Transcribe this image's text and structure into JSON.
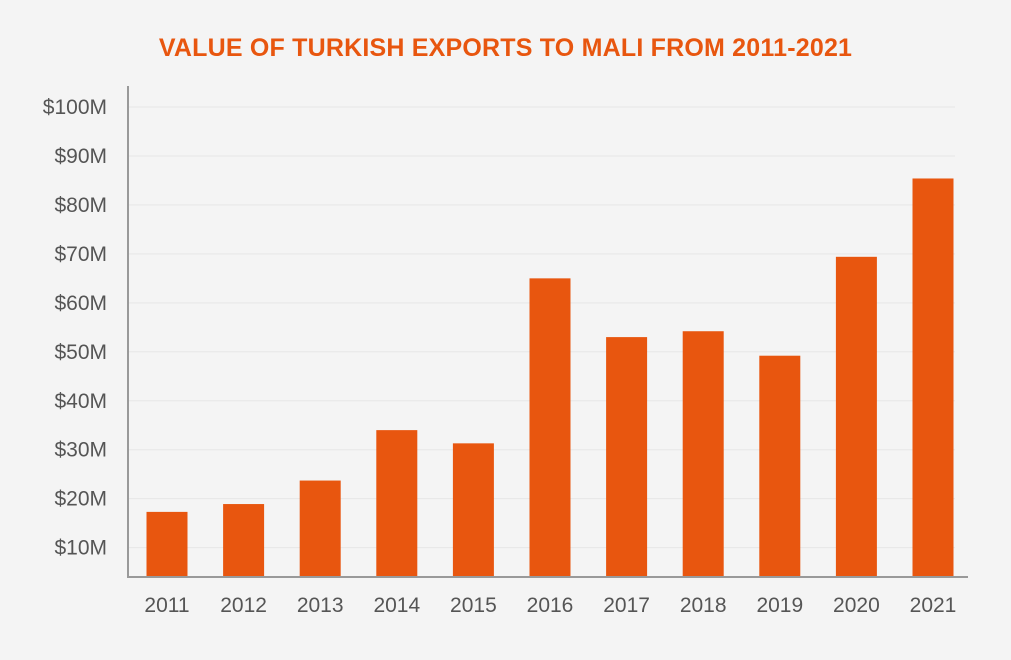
{
  "chart_data": {
    "type": "bar",
    "title": "VALUE OF TURKISH EXPORTS TO MALI FROM 2011-2021",
    "xlabel": "",
    "ylabel": "",
    "categories": [
      "2011",
      "2012",
      "2013",
      "2014",
      "2015",
      "2016",
      "2017",
      "2018",
      "2019",
      "2020",
      "2021"
    ],
    "values": [
      17.3,
      18.9,
      23.7,
      34.0,
      31.3,
      65.0,
      53.0,
      54.2,
      49.2,
      69.4,
      85.4
    ],
    "unit": "$M",
    "ylim": [
      4,
      100
    ],
    "yticks": [
      10,
      20,
      30,
      40,
      50,
      60,
      70,
      80,
      90,
      100
    ],
    "ytick_labels": [
      "$10M",
      "$20M",
      "$30M",
      "$40M",
      "$50M",
      "$60M",
      "$70M",
      "$80M",
      "$90M",
      "$100M"
    ],
    "grid": true,
    "legend": "none",
    "colors": {
      "bar": "#e8560f",
      "title": "#e8560f",
      "axis": "#999999",
      "grid": "#e6e6e6",
      "text": "#555555",
      "background": "#f4f4f4"
    }
  }
}
